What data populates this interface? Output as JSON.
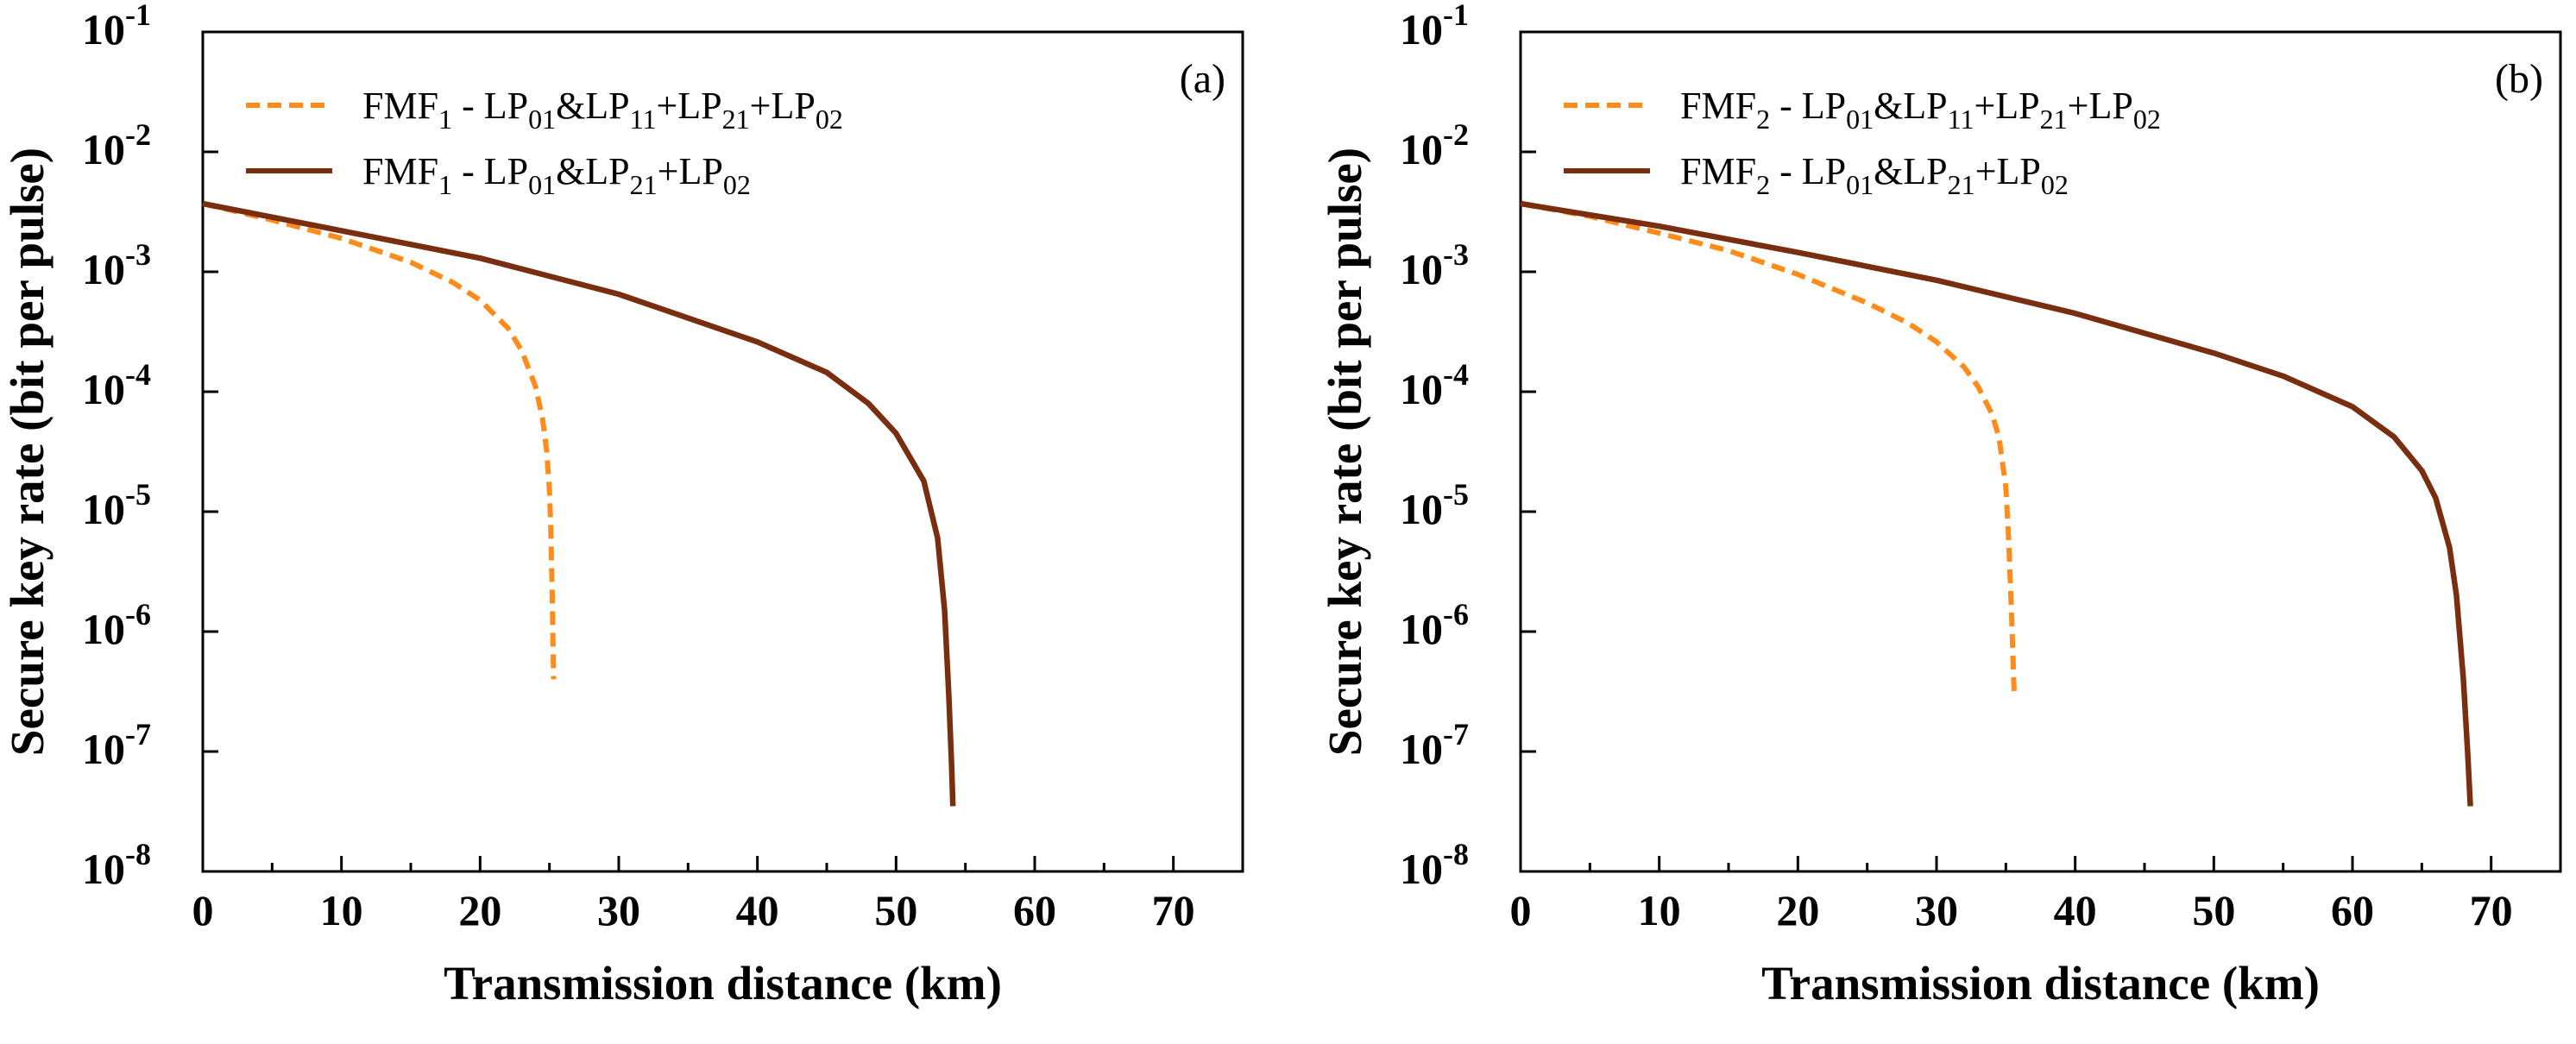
{
  "chart_data": [
    {
      "type": "line",
      "panel_label": "(a)",
      "xlabel": "Transmission distance (km)",
      "ylabel": "Secure key rate (bit per pulse)",
      "xlim": [
        0,
        75
      ],
      "ylim": [
        1e-08,
        0.1
      ],
      "y_scale": "log",
      "x_ticks": [
        "0",
        "10",
        "20",
        "30",
        "40",
        "50",
        "60",
        "70"
      ],
      "y_ticks": [
        {
          "base": "10",
          "exp": "-8"
        },
        {
          "base": "10",
          "exp": "-7"
        },
        {
          "base": "10",
          "exp": "-6"
        },
        {
          "base": "10",
          "exp": "-5"
        },
        {
          "base": "10",
          "exp": "-4"
        },
        {
          "base": "10",
          "exp": "-3"
        },
        {
          "base": "10",
          "exp": "-2"
        },
        {
          "base": "10",
          "exp": "-1"
        }
      ],
      "legend_position": "top-left",
      "series": [
        {
          "name": "FMF1 - LP01&LP11+LP21+LP02",
          "label_parts": [
            [
              "FMF",
              "n"
            ],
            [
              "1",
              "sub"
            ],
            [
              " - LP",
              "n"
            ],
            [
              "01",
              "sub"
            ],
            [
              "&LP",
              "n"
            ],
            [
              "11",
              "sub"
            ],
            [
              "+LP",
              "n"
            ],
            [
              "21",
              "sub"
            ],
            [
              "+LP",
              "n"
            ],
            [
              "02",
              "sub"
            ]
          ],
          "color": "#ff8c1a",
          "style": "dashed",
          "x": [
            0,
            5,
            10,
            15,
            18,
            20,
            22,
            23,
            24,
            24.5,
            24.8,
            25.0,
            25.1,
            25.2,
            25.3
          ],
          "y": [
            0.0037,
            0.0027,
            0.0019,
            0.0012,
            0.00082,
            0.00058,
            0.00034,
            0.00022,
            0.00011,
            6e-05,
            3.2e-05,
            1.5e-05,
            7e-06,
            2e-06,
            4e-07
          ]
        },
        {
          "name": "FMF1 - LP01&LP21+LP02",
          "label_parts": [
            [
              "FMF",
              "n"
            ],
            [
              "1",
              "sub"
            ],
            [
              " - LP",
              "n"
            ],
            [
              "01",
              "sub"
            ],
            [
              "&LP",
              "n"
            ],
            [
              "21",
              "sub"
            ],
            [
              "+LP",
              "n"
            ],
            [
              "02",
              "sub"
            ]
          ],
          "color": "#7a2e10",
          "style": "solid",
          "x": [
            0,
            10,
            20,
            30,
            40,
            45,
            48,
            50,
            52,
            53,
            53.5,
            53.8,
            54.0,
            54.1
          ],
          "y": [
            0.0037,
            0.0022,
            0.0013,
            0.00065,
            0.00026,
            0.000145,
            8e-05,
            4.5e-05,
            1.8e-05,
            6e-06,
            1.5e-06,
            3e-07,
            8e-08,
            3.5e-08
          ]
        }
      ]
    },
    {
      "type": "line",
      "panel_label": "(b)",
      "xlabel": "Transmission distance (km)",
      "ylabel": "Secure key rate (bit per pulse)",
      "xlim": [
        0,
        75
      ],
      "ylim": [
        1e-08,
        0.1
      ],
      "y_scale": "log",
      "x_ticks": [
        "0",
        "10",
        "20",
        "30",
        "40",
        "50",
        "60",
        "70"
      ],
      "y_ticks": [
        {
          "base": "10",
          "exp": "-8"
        },
        {
          "base": "10",
          "exp": "-7"
        },
        {
          "base": "10",
          "exp": "-6"
        },
        {
          "base": "10",
          "exp": "-5"
        },
        {
          "base": "10",
          "exp": "-4"
        },
        {
          "base": "10",
          "exp": "-3"
        },
        {
          "base": "10",
          "exp": "-2"
        },
        {
          "base": "10",
          "exp": "-1"
        }
      ],
      "legend_position": "top-left",
      "series": [
        {
          "name": "FMF2 - LP01&LP11+LP21+LP02",
          "label_parts": [
            [
              "FMF",
              "n"
            ],
            [
              "2",
              "sub"
            ],
            [
              " - LP",
              "n"
            ],
            [
              "01",
              "sub"
            ],
            [
              "&LP",
              "n"
            ],
            [
              "11",
              "sub"
            ],
            [
              "+LP",
              "n"
            ],
            [
              "21",
              "sub"
            ],
            [
              "+LP",
              "n"
            ],
            [
              "02",
              "sub"
            ]
          ],
          "color": "#ff8c1a",
          "style": "dashed",
          "x": [
            0,
            5,
            10,
            15,
            20,
            25,
            28,
            30,
            32,
            33,
            34,
            34.5,
            35.0,
            35.2,
            35.4,
            35.6
          ],
          "y": [
            0.0037,
            0.0029,
            0.0021,
            0.0015,
            0.00095,
            0.00055,
            0.00037,
            0.00026,
            0.00016,
            0.00011,
            6.5e-05,
            4.2e-05,
            1.6e-05,
            6e-06,
            1.5e-06,
            3e-07
          ]
        },
        {
          "name": "FMF2 - LP01&LP21+LP02",
          "label_parts": [
            [
              "FMF",
              "n"
            ],
            [
              "2",
              "sub"
            ],
            [
              " - LP",
              "n"
            ],
            [
              "01",
              "sub"
            ],
            [
              "&LP",
              "n"
            ],
            [
              "21",
              "sub"
            ],
            [
              "+LP",
              "n"
            ],
            [
              "02",
              "sub"
            ]
          ],
          "color": "#7a2e10",
          "style": "solid",
          "x": [
            0,
            10,
            20,
            30,
            40,
            50,
            55,
            60,
            63,
            65,
            66,
            67,
            67.5,
            68.0,
            68.3,
            68.5
          ],
          "y": [
            0.0037,
            0.0024,
            0.00145,
            0.00085,
            0.00045,
            0.00021,
            0.000135,
            7.5e-05,
            4.2e-05,
            2.2e-05,
            1.3e-05,
            5e-06,
            2e-06,
            4e-07,
            1e-07,
            3.5e-08
          ]
        }
      ]
    }
  ]
}
